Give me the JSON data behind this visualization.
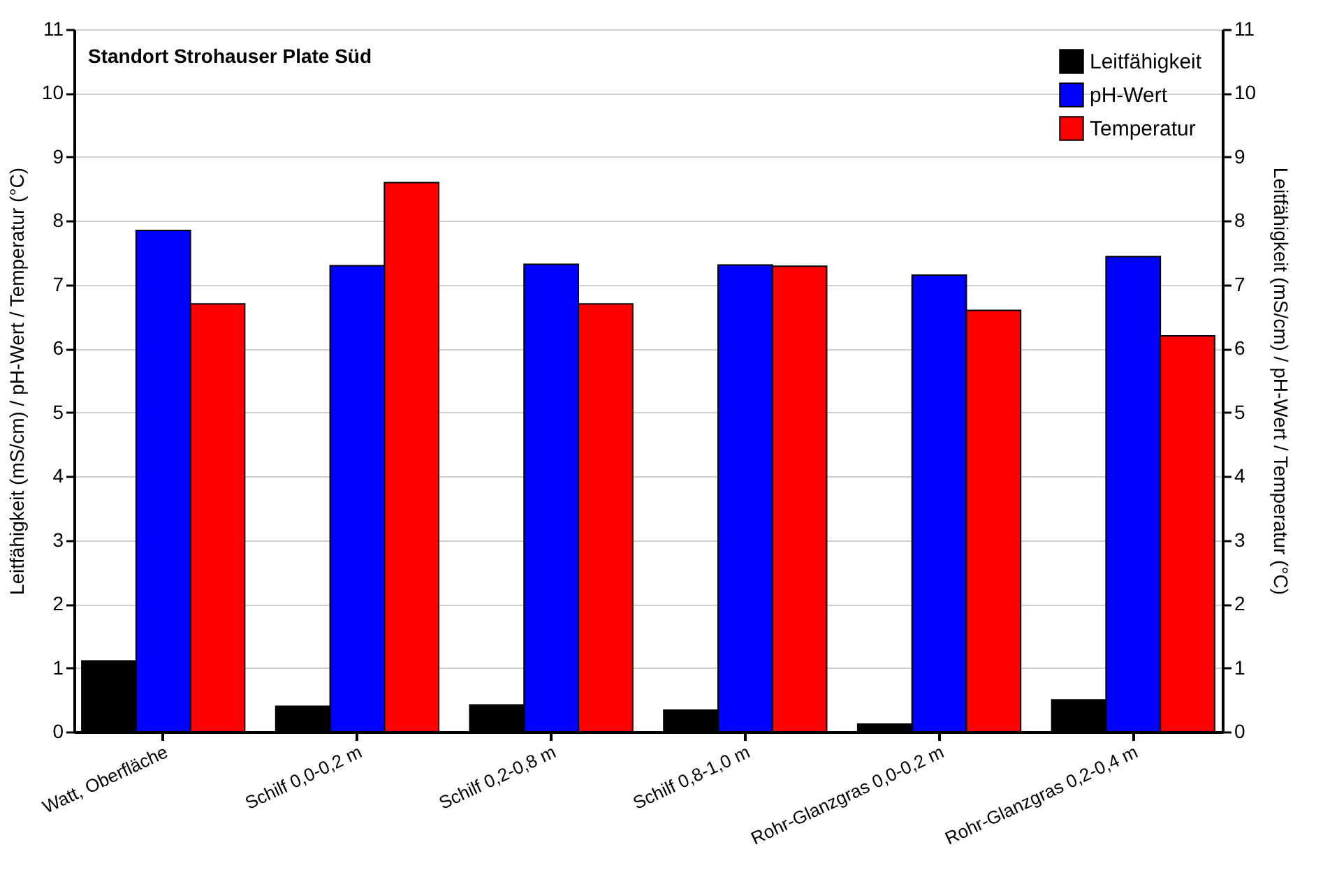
{
  "chart_data": {
    "type": "bar",
    "title": "Standort Strohauser Plate Süd",
    "ylabel": "Leitfähigkeit (mS/cm) / pH-Wert / Temperatur (°C)",
    "y2label": "Leitfähigkeit (mS/cm) / pH-Wert / Temperatur (°C)",
    "categories": [
      "Watt, Oberfläche",
      "Schilf 0,0-0,2 m",
      "Schilf  0,2-0,8 m",
      "Schilf  0,8-1,0 m",
      "Rohr-Glanzgras 0,0-0,2 m",
      "Rohr-Glanzgras 0,2-0,4 m"
    ],
    "series": [
      {
        "name": "Leitfähigkeit",
        "color": "#000000",
        "values": [
          1.11,
          0.4,
          0.42,
          0.34,
          0.12,
          0.5
        ]
      },
      {
        "name": "pH-Wert",
        "color": "#0000ff",
        "values": [
          7.85,
          7.3,
          7.32,
          7.31,
          7.15,
          7.44
        ]
      },
      {
        "name": "Temperatur",
        "color": "#ff0000",
        "values": [
          6.7,
          8.6,
          6.7,
          7.29,
          6.6,
          6.2
        ]
      }
    ],
    "ylim": [
      0,
      11
    ],
    "yticks": [
      0,
      1,
      2,
      3,
      4,
      5,
      6,
      7,
      8,
      9,
      10,
      11
    ],
    "y2lim": [
      0,
      11
    ],
    "y2ticks": [
      0,
      1,
      2,
      3,
      4,
      5,
      6,
      7,
      8,
      9,
      10,
      11
    ],
    "grid": "y",
    "legend": "top right"
  }
}
